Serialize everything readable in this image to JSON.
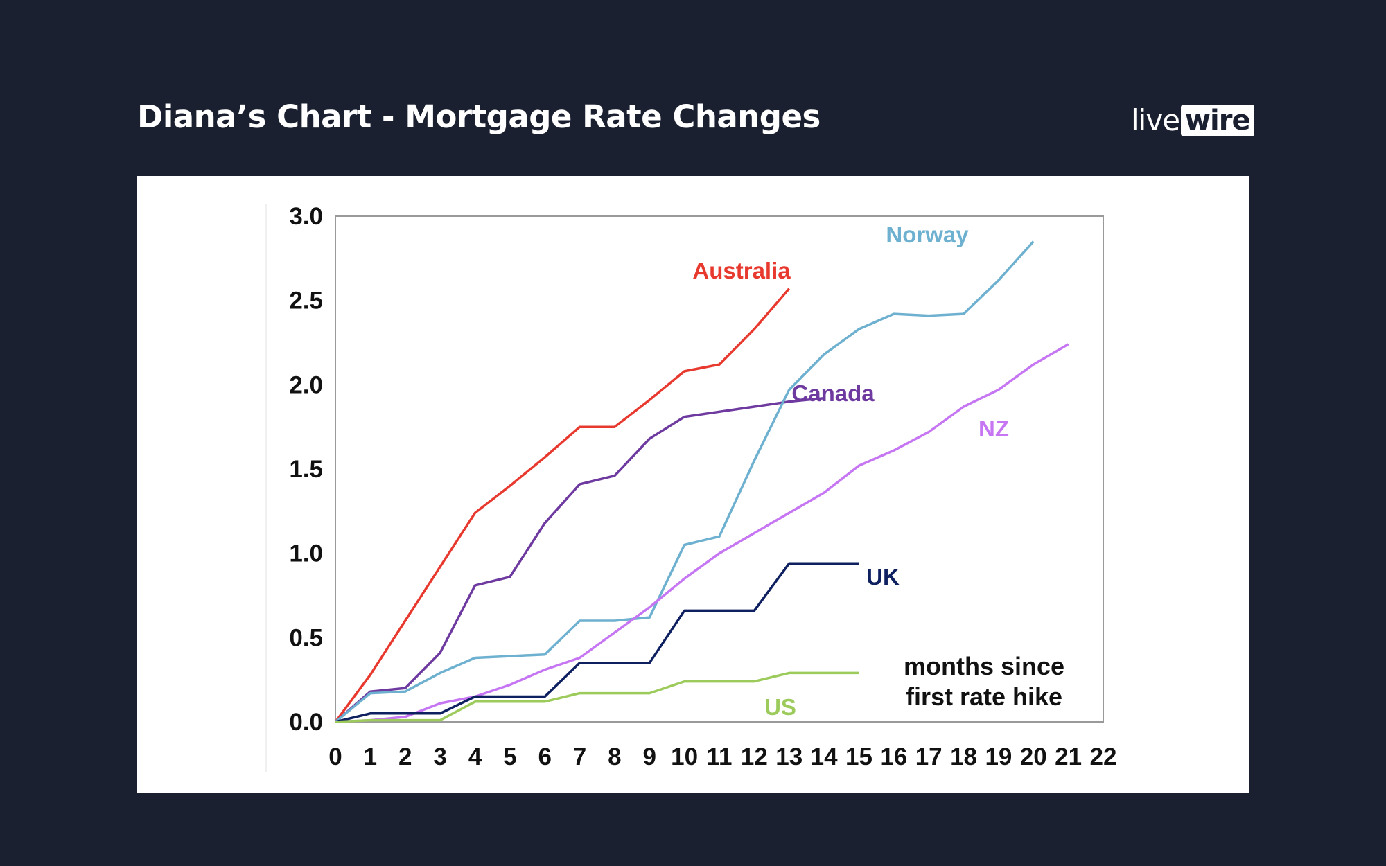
{
  "header": {
    "title": "Diana’s Chart - Mortgage Rate Changes",
    "logo_live": "live",
    "logo_wire": "wire"
  },
  "chart_data": {
    "type": "line",
    "title": "",
    "xlabel": "",
    "ylabel": "",
    "xlim": [
      0,
      22
    ],
    "ylim": [
      0,
      3.0
    ],
    "grid": false,
    "x_ticks": [
      "0",
      "1",
      "2",
      "3",
      "4",
      "5",
      "6",
      "7",
      "8",
      "9",
      "10",
      "11",
      "12",
      "13",
      "14",
      "15",
      "16",
      "17",
      "18",
      "19",
      "20",
      "21",
      "22"
    ],
    "y_ticks": [
      "0.0",
      "0.5",
      "1.0",
      "1.5",
      "2.0",
      "2.5",
      "3.0"
    ],
    "y_tick_values": [
      0,
      0.5,
      1.0,
      1.5,
      2.0,
      2.5,
      3.0
    ],
    "annotation": [
      "months since",
      "first rate hike"
    ],
    "series": [
      {
        "name": "Australia",
        "color": "#e8392f",
        "x": [
          0,
          1,
          2,
          3,
          4,
          5,
          6,
          7,
          8,
          9,
          10,
          11,
          12,
          13
        ],
        "values": [
          0,
          0.28,
          0.6,
          0.92,
          1.24,
          1.4,
          1.57,
          1.75,
          1.75,
          1.91,
          2.08,
          2.12,
          2.33,
          2.57
        ]
      },
      {
        "name": "Canada",
        "color": "#6e3aa0",
        "x": [
          0,
          1,
          2,
          3,
          4,
          5,
          6,
          7,
          8,
          9,
          10,
          11,
          12,
          13,
          14
        ],
        "values": [
          0,
          0.18,
          0.2,
          0.41,
          0.81,
          0.86,
          1.18,
          1.41,
          1.46,
          1.68,
          1.81,
          1.84,
          1.87,
          1.9,
          1.92
        ]
      },
      {
        "name": "Norway",
        "color": "#6db0cf",
        "x": [
          0,
          1,
          2,
          3,
          4,
          5,
          6,
          7,
          8,
          9,
          10,
          11,
          12,
          13,
          14,
          15,
          16,
          17,
          18,
          19,
          20
        ],
        "values": [
          0,
          0.17,
          0.18,
          0.29,
          0.38,
          0.39,
          0.4,
          0.6,
          0.6,
          0.62,
          1.05,
          1.1,
          1.55,
          1.97,
          2.18,
          2.33,
          2.42,
          2.41,
          2.42,
          2.62,
          2.85
        ]
      },
      {
        "name": "NZ",
        "color": "#c676f2",
        "x": [
          0,
          1,
          2,
          3,
          4,
          5,
          6,
          7,
          8,
          9,
          10,
          11,
          12,
          13,
          14,
          15,
          16,
          17,
          18,
          19,
          20,
          21
        ],
        "values": [
          0,
          0.01,
          0.03,
          0.11,
          0.15,
          0.22,
          0.31,
          0.38,
          0.53,
          0.68,
          0.85,
          1.0,
          1.12,
          1.24,
          1.36,
          1.52,
          1.61,
          1.72,
          1.87,
          1.97,
          2.12,
          2.24
        ]
      },
      {
        "name": "UK",
        "color": "#0e2060",
        "x": [
          0,
          1,
          2,
          3,
          4,
          5,
          6,
          7,
          8,
          9,
          10,
          11,
          12,
          13,
          14,
          15
        ],
        "values": [
          0,
          0.05,
          0.05,
          0.05,
          0.15,
          0.15,
          0.15,
          0.35,
          0.35,
          0.35,
          0.66,
          0.66,
          0.66,
          0.94,
          0.94,
          0.94
        ]
      },
      {
        "name": "US",
        "color": "#9ccb5c",
        "x": [
          0,
          1,
          2,
          3,
          4,
          5,
          6,
          7,
          8,
          9,
          10,
          11,
          12,
          13,
          14,
          15
        ],
        "values": [
          0,
          0.01,
          0.01,
          0.01,
          0.12,
          0.12,
          0.12,
          0.17,
          0.17,
          0.17,
          0.24,
          0.24,
          0.24,
          0.29,
          0.29,
          0.29
        ]
      }
    ]
  }
}
